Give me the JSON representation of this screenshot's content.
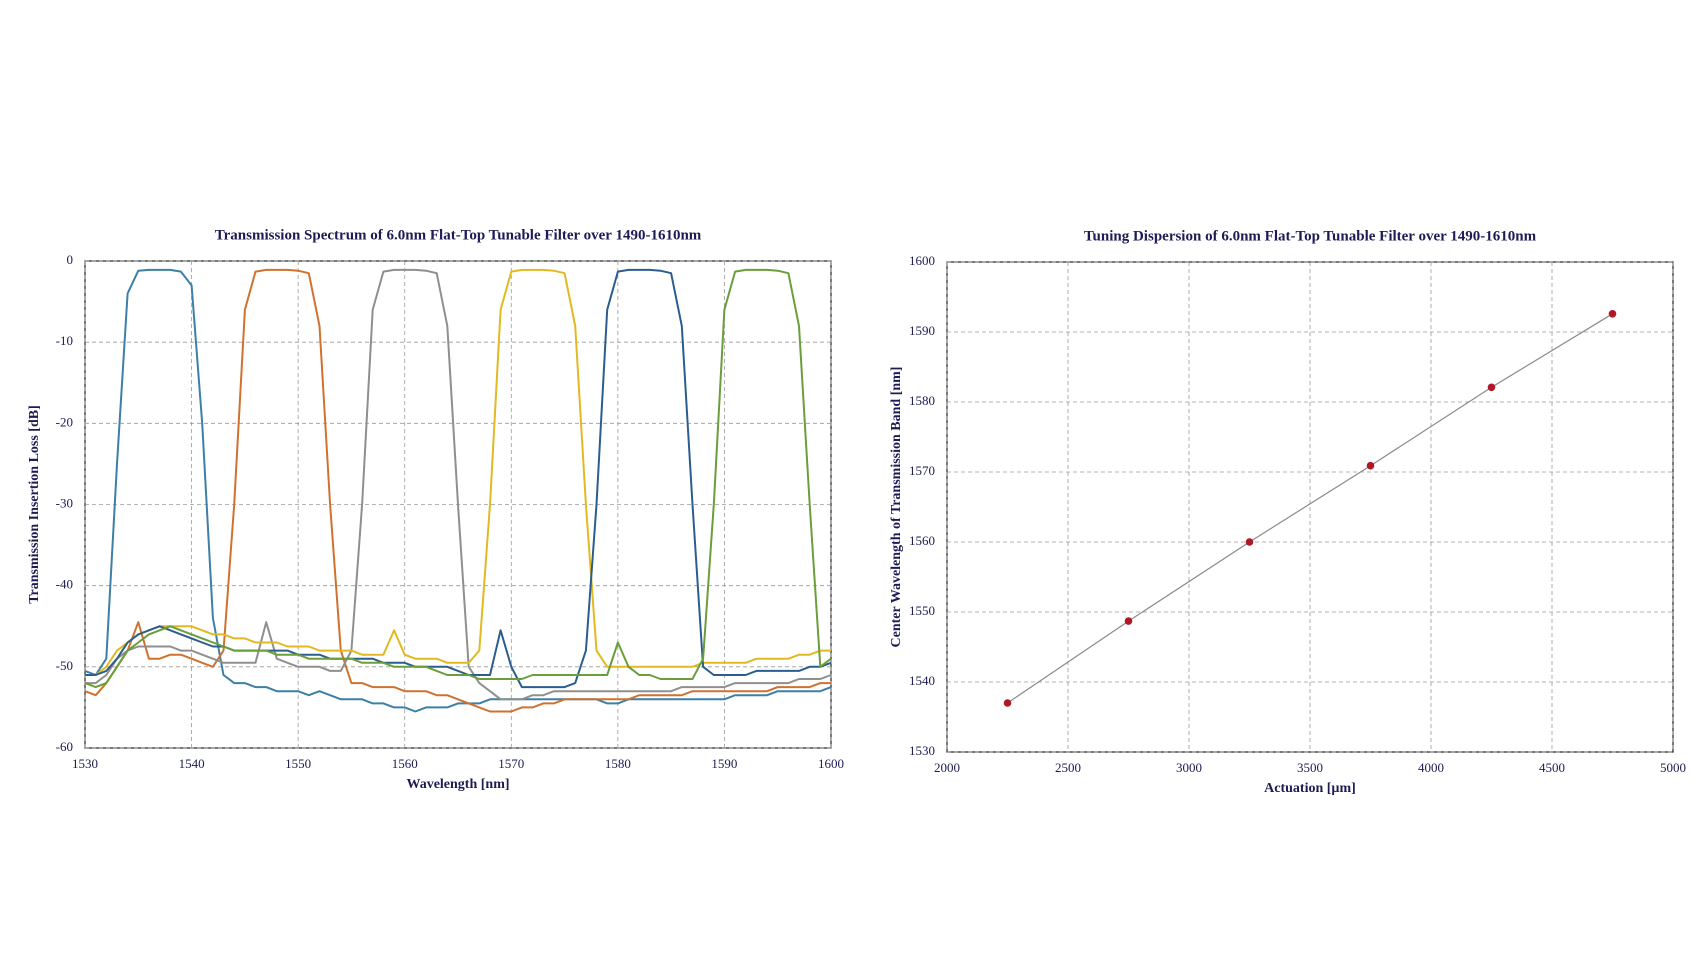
{
  "chart_data": [
    {
      "type": "line",
      "title": "Transmission Spectrum of 6.0nm Flat-Top Tunable Filter over 1490-1610nm",
      "x_label": "Wavelength [nm]",
      "y_label": "Transmission Insertion Loss [dB]",
      "xlim": [
        1530,
        1600
      ],
      "xticks": [
        1530,
        1540,
        1550,
        1560,
        1570,
        1580,
        1590,
        1600
      ],
      "ylim": [
        -60,
        0
      ],
      "yticks": [
        0,
        -10,
        -20,
        -30,
        -40,
        -50,
        -60
      ],
      "grid": true,
      "x": [
        1530,
        1531,
        1532,
        1533,
        1534,
        1535,
        1536,
        1537,
        1538,
        1539,
        1540,
        1541,
        1542,
        1543,
        1544,
        1545,
        1546,
        1547,
        1548,
        1549,
        1550,
        1551,
        1552,
        1553,
        1554,
        1555,
        1556,
        1557,
        1558,
        1559,
        1560,
        1561,
        1562,
        1563,
        1564,
        1565,
        1566,
        1567,
        1568,
        1569,
        1570,
        1571,
        1572,
        1573,
        1574,
        1575,
        1576,
        1577,
        1578,
        1579,
        1580,
        1581,
        1582,
        1583,
        1584,
        1585,
        1586,
        1587,
        1588,
        1589,
        1590,
        1591,
        1592,
        1593,
        1594,
        1595,
        1596,
        1597,
        1598,
        1599,
        1600
      ],
      "series": [
        {
          "color": "#3d7fa6",
          "values": [
            -50.5,
            -51,
            -49,
            -25,
            -4,
            -1.2,
            -1.1,
            -1.1,
            -1.1,
            -1.3,
            -3,
            -20,
            -44,
            -51,
            -52,
            -52,
            -52.5,
            -52.5,
            -53,
            -53,
            -53,
            -53.5,
            -53,
            -53.5,
            -54,
            -54,
            -54,
            -54.5,
            -54.5,
            -55,
            -55,
            -55.5,
            -55,
            -55,
            -55,
            -54.5,
            -54.5,
            -54.5,
            -54,
            -54,
            -54,
            -54,
            -54,
            -54,
            -54,
            -54,
            -54,
            -54,
            -54,
            -54.5,
            -54.5,
            -54,
            -54,
            -54,
            -54,
            -54,
            -54,
            -54,
            -54,
            -54,
            -54,
            -53.5,
            -53.5,
            -53.5,
            -53.5,
            -53,
            -53,
            -53,
            -53,
            -53,
            -52.5
          ]
        },
        {
          "color": "#d0722e",
          "values": [
            -53,
            -53.5,
            -52,
            -50,
            -48,
            -44.5,
            -49,
            -49,
            -48.5,
            -48.5,
            -49,
            -49.5,
            -50,
            -48,
            -30,
            -6,
            -1.3,
            -1.1,
            -1.1,
            -1.1,
            -1.2,
            -1.5,
            -8,
            -30,
            -48,
            -52,
            -52,
            -52.5,
            -52.5,
            -52.5,
            -53,
            -53,
            -53,
            -53.5,
            -53.5,
            -54,
            -54.5,
            -55,
            -55.5,
            -55.5,
            -55.5,
            -55,
            -55,
            -54.5,
            -54.5,
            -54,
            -54,
            -54,
            -54,
            -54,
            -54,
            -54,
            -53.5,
            -53.5,
            -53.5,
            -53.5,
            -53.5,
            -53,
            -53,
            -53,
            -53,
            -53,
            -53,
            -53,
            -53,
            -52.5,
            -52.5,
            -52.5,
            -52.5,
            -52,
            -52
          ]
        },
        {
          "color": "#8f8f8f",
          "values": [
            -52,
            -52,
            -51,
            -49,
            -48,
            -47.5,
            -47.5,
            -47.5,
            -47.5,
            -48,
            -48,
            -48.5,
            -49,
            -49.5,
            -49.5,
            -49.5,
            -49.5,
            -44.5,
            -49,
            -49.5,
            -50,
            -50,
            -50,
            -50.5,
            -50.5,
            -48,
            -30,
            -6,
            -1.3,
            -1.1,
            -1.1,
            -1.1,
            -1.2,
            -1.5,
            -8,
            -30,
            -50,
            -52,
            -53,
            -54,
            -54,
            -54,
            -53.5,
            -53.5,
            -53,
            -53,
            -53,
            -53,
            -53,
            -53,
            -53,
            -53,
            -53,
            -53,
            -53,
            -53,
            -52.5,
            -52.5,
            -52.5,
            -52.5,
            -52.5,
            -52,
            -52,
            -52,
            -52,
            -52,
            -52,
            -51.5,
            -51.5,
            -51.5,
            -51
          ]
        },
        {
          "color": "#e2b921",
          "values": [
            -51,
            -51,
            -50,
            -48,
            -47,
            -46,
            -45.5,
            -45,
            -45,
            -45,
            -45,
            -45.5,
            -46,
            -46,
            -46.5,
            -46.5,
            -47,
            -47,
            -47,
            -47.5,
            -47.5,
            -47.5,
            -48,
            -48,
            -48,
            -48,
            -48.5,
            -48.5,
            -48.5,
            -45.5,
            -48.5,
            -49,
            -49,
            -49,
            -49.5,
            -49.5,
            -49.5,
            -48,
            -30,
            -6,
            -1.3,
            -1.1,
            -1.1,
            -1.1,
            -1.2,
            -1.5,
            -8,
            -30,
            -48,
            -50,
            -50,
            -50,
            -50,
            -50,
            -50,
            -50,
            -50,
            -50,
            -49.5,
            -49.5,
            -49.5,
            -49.5,
            -49.5,
            -49,
            -49,
            -49,
            -49,
            -48.5,
            -48.5,
            -48,
            -48
          ]
        },
        {
          "color": "#2c5d8f",
          "values": [
            -51,
            -51,
            -50.5,
            -49,
            -47,
            -46,
            -45.5,
            -45,
            -45.5,
            -46,
            -46.5,
            -47,
            -47.5,
            -47.5,
            -48,
            -48,
            -48,
            -48,
            -48,
            -48,
            -48.5,
            -48.5,
            -48.5,
            -49,
            -49,
            -49,
            -49,
            -49,
            -49.5,
            -49.5,
            -49.5,
            -50,
            -50,
            -50,
            -50,
            -50.5,
            -51,
            -51,
            -51,
            -45.5,
            -50,
            -52.5,
            -52.5,
            -52.5,
            -52.5,
            -52.5,
            -52,
            -48,
            -30,
            -6,
            -1.3,
            -1.1,
            -1.1,
            -1.1,
            -1.2,
            -1.5,
            -8,
            -30,
            -50,
            -51,
            -51,
            -51,
            -51,
            -50.5,
            -50.5,
            -50.5,
            -50.5,
            -50.5,
            -50,
            -50,
            -49.5
          ]
        },
        {
          "color": "#6a9e3a",
          "values": [
            -52,
            -52.5,
            -52,
            -50,
            -48,
            -47,
            -46,
            -45.5,
            -45,
            -45.5,
            -46,
            -46.5,
            -47,
            -47.5,
            -48,
            -48,
            -48,
            -48,
            -48.5,
            -48.5,
            -48.5,
            -49,
            -49,
            -49,
            -49,
            -49,
            -49.5,
            -49.5,
            -49.5,
            -50,
            -50,
            -50,
            -50,
            -50.5,
            -51,
            -51,
            -51,
            -51.5,
            -51.5,
            -51.5,
            -51.5,
            -51.5,
            -51,
            -51,
            -51,
            -51,
            -51,
            -51,
            -51,
            -51,
            -47,
            -50,
            -51,
            -51,
            -51.5,
            -51.5,
            -51.5,
            -51.5,
            -49,
            -30,
            -6,
            -1.3,
            -1.1,
            -1.1,
            -1.1,
            -1.2,
            -1.5,
            -8,
            -30,
            -50,
            -49
          ]
        }
      ]
    },
    {
      "type": "scatter",
      "title": "Tuning Dispersion of 6.0nm Flat-Top Tunable Filter over 1490-1610nm",
      "x_label": "Actuation [µm]",
      "y_label": "Center Wavelength of Transmission Band [nm]",
      "xlim": [
        2000,
        5000
      ],
      "xticks": [
        2000,
        2500,
        3000,
        3500,
        4000,
        4500,
        5000
      ],
      "ylim": [
        1530,
        1600
      ],
      "yticks": [
        1600,
        1590,
        1580,
        1570,
        1560,
        1550,
        1540,
        1530
      ],
      "grid": true,
      "color": "#b01828",
      "line_color": "#8a8a8a",
      "x": [
        2250,
        2750,
        3250,
        3750,
        4250,
        4750
      ],
      "values": [
        1537,
        1548.7,
        1560,
        1570.9,
        1582.1,
        1592.6
      ]
    }
  ]
}
